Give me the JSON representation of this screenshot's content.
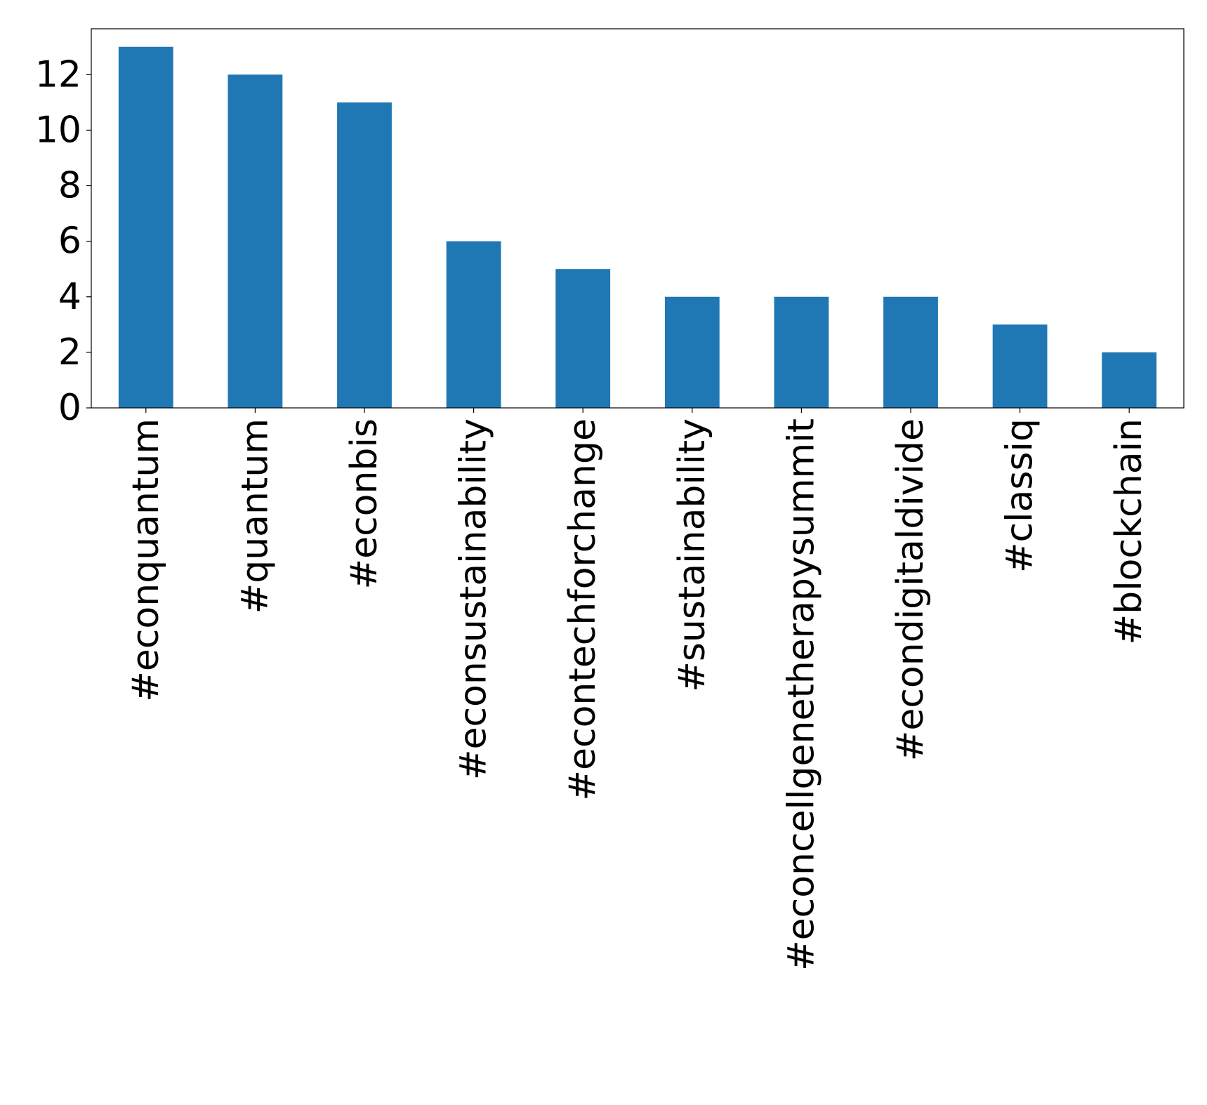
{
  "chart_data": {
    "type": "bar",
    "categories": [
      "#econquantum",
      "#quantum",
      "#econbis",
      "#econsustainability",
      "#econtechforchange",
      "#sustainability",
      "#econcellgenetherapysummit",
      "#econdigitaldivide",
      "#classiq",
      "#blockchain"
    ],
    "values": [
      13,
      12,
      11,
      6,
      5,
      4,
      4,
      4,
      3,
      2
    ],
    "yticks": [
      "0",
      "2",
      "4",
      "6",
      "8",
      "10",
      "12"
    ],
    "ylim": [
      0,
      13.65
    ],
    "title": "",
    "xlabel": "",
    "ylabel": "",
    "grid": false,
    "bar_color": "#1f77b4"
  }
}
